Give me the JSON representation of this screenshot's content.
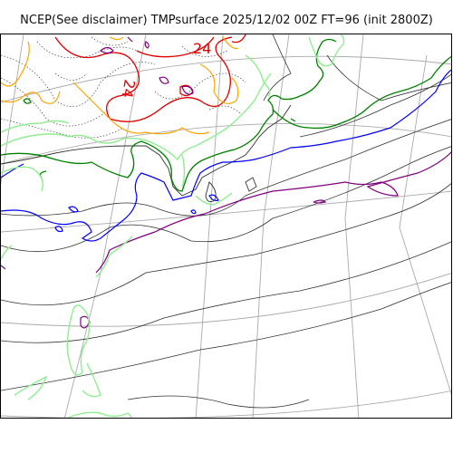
{
  "figure": {
    "title": "NCEP(See disclaimer) TMPsurface 2025/12/02 00Z FT=96 (init 2800Z)"
  },
  "map": {
    "projection": "polar stereographic",
    "field": "TMPsurface",
    "colors": {
      "graticule": "#aaaaaa",
      "coastline": "#333333",
      "isotherm_dotted": "#444444",
      "red": "#e00000",
      "orange": "#ffa500",
      "purple": "#800080",
      "green": "#008000",
      "lightgreen": "#90ee90",
      "blue": "#0000ff"
    },
    "contour_labels": [
      "24",
      "24"
    ]
  }
}
